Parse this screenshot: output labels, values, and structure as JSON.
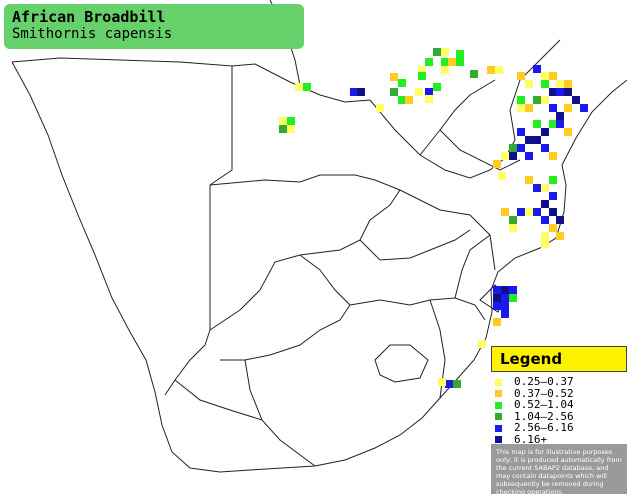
{
  "title": "African Broadbill",
  "subtitle": "Smithornis capensis",
  "legend": {
    "title": "Legend",
    "items": [
      {
        "label": "0.25–0.37",
        "color": "#ffff66"
      },
      {
        "label": "0.37–0.52",
        "color": "#ffcc22"
      },
      {
        "label": "0.52–1.04",
        "color": "#22ee22"
      },
      {
        "label": "1.04–2.56",
        "color": "#33aa33"
      },
      {
        "label": "2.56–6.16",
        "color": "#1a1aee"
      },
      {
        "label": "6.16+",
        "color": "#10108a"
      }
    ],
    "disclaimer": "This map is for illustrative purposes only; it is produced automatically from the current SABAP2 database, and may contain datapoints which will subsequently be removed during checking operations."
  }
}
